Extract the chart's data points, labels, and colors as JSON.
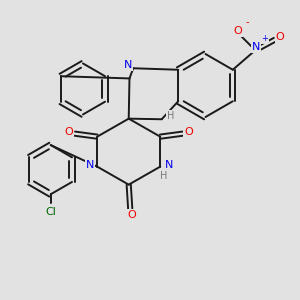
{
  "bg_color": "#e2e2e2",
  "bond_color": "#1a1a1a",
  "bond_lw": 1.4,
  "N_color": "#0000ee",
  "O_color": "#ee0000",
  "Cl_color": "#006600",
  "H_color": "#7a7a7a",
  "font_size": 8.0,
  "xlim": [
    0,
    10
  ],
  "ylim": [
    0,
    10
  ]
}
